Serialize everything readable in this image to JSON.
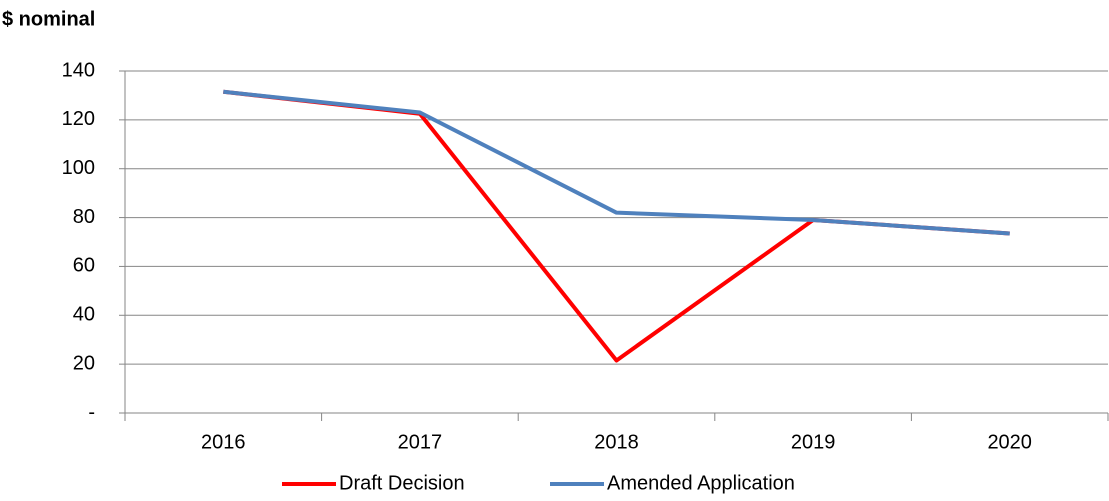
{
  "chart_data": {
    "type": "line",
    "title": "$ nominal",
    "categories": [
      "2016",
      "2017",
      "2018",
      "2019",
      "2020"
    ],
    "series": [
      {
        "name": "Draft Decision",
        "color": "#ff0000",
        "values": [
          131.5,
          122.5,
          21.5,
          79,
          73.5
        ]
      },
      {
        "name": "Amended Application",
        "color": "#4f81bd",
        "values": [
          131.5,
          123,
          82,
          79,
          73.5
        ]
      }
    ],
    "ylim": [
      0,
      140
    ],
    "yticks": [
      {
        "value": 0,
        "label": "-"
      },
      20,
      40,
      60,
      80,
      100,
      120,
      140
    ],
    "grid": true,
    "legend": "bottom"
  }
}
